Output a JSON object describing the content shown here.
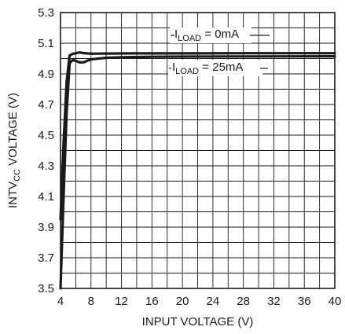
{
  "chart_data": {
    "type": "line",
    "title": "",
    "xlabel": "INPUT VOLTAGE (V)",
    "ylabel": {
      "base": "INTV",
      "sub": "CC",
      "rest": " VOLTAGE (V)"
    },
    "xlim": [
      4,
      40
    ],
    "ylim": [
      3.5,
      5.3
    ],
    "xticks": [
      4,
      8,
      12,
      16,
      20,
      24,
      28,
      32,
      36,
      40
    ],
    "yticks": [
      "3.5",
      "3.7",
      "3.9",
      "4.1",
      "4.3",
      "4.5",
      "4.7",
      "4.9",
      "5.1",
      "5.3"
    ],
    "grid": true,
    "series": [
      {
        "name": {
          "base": "I",
          "sub": "LOAD",
          "rest": " = 0mA"
        },
        "x": [
          4.0,
          4.4,
          4.8,
          5.2,
          5.6,
          6.0,
          6.5,
          7.0,
          8.0,
          10.0,
          14.0,
          20.0,
          28.0,
          40.0
        ],
        "y": [
          3.95,
          4.45,
          4.85,
          5.02,
          5.03,
          5.035,
          5.04,
          5.036,
          5.032,
          5.033,
          5.034,
          5.034,
          5.035,
          5.035
        ]
      },
      {
        "name": {
          "base": "I",
          "sub": "LOAD",
          "rest": " = 25mA"
        },
        "x": [
          4.0,
          4.4,
          4.8,
          5.2,
          5.6,
          6.0,
          6.5,
          7.0,
          7.5,
          8.0,
          9.0,
          10.0,
          12.0,
          16.0,
          20.0,
          28.0,
          40.0
        ],
        "y": [
          3.5,
          4.1,
          4.65,
          4.97,
          4.99,
          4.985,
          4.975,
          4.975,
          4.985,
          4.995,
          5.0,
          5.005,
          5.008,
          5.012,
          5.013,
          5.014,
          5.015
        ]
      }
    ]
  }
}
